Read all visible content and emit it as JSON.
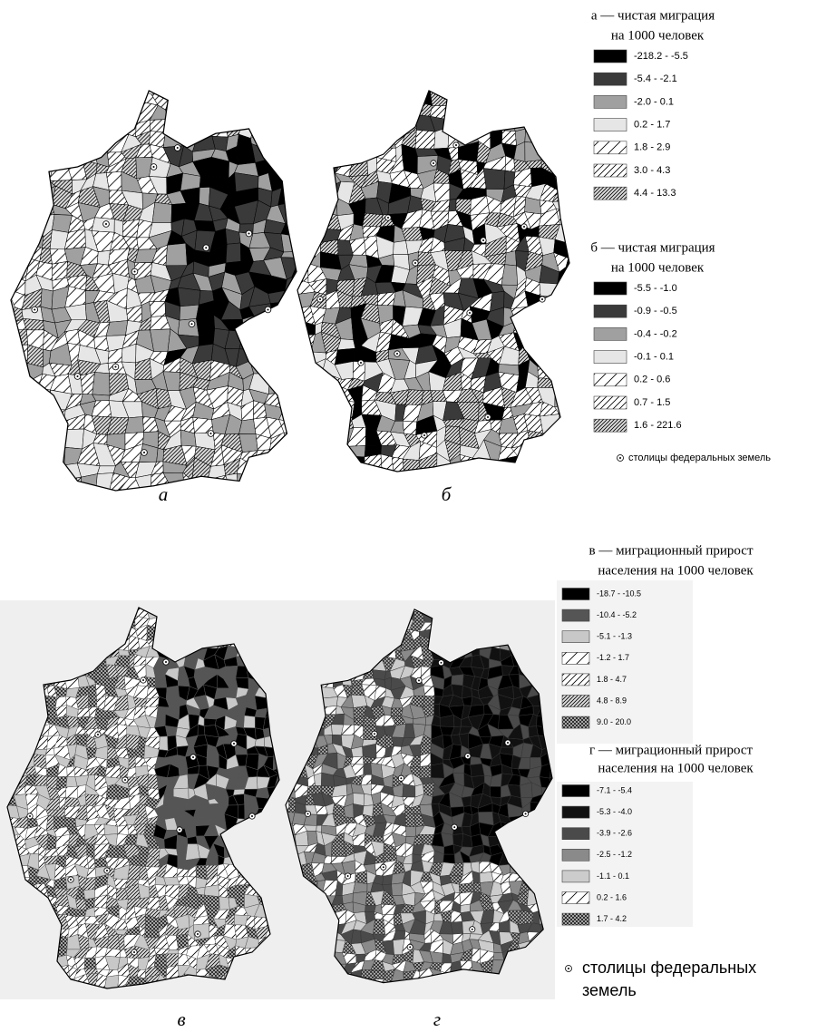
{
  "panels": [
    {
      "label": "а",
      "title": [
        "а — чистая миграция",
        "на 1000 человек"
      ],
      "items": [
        {
          "label": "-218.2 - -5.5",
          "fill": "#000000"
        },
        {
          "label": "-5.4 - -2.1",
          "fill": "#3a3a3a"
        },
        {
          "label": "-2.0 - 0.1",
          "fill": "#a0a0a0"
        },
        {
          "label": "0.2 - 1.7",
          "fill": "#e6e6e6"
        },
        {
          "label": "1.8 - 2.9",
          "fill": "hatch-sparse"
        },
        {
          "label": "3.0 - 4.3",
          "fill": "hatch"
        },
        {
          "label": "4.4 - 13.3",
          "fill": "hatch-dense"
        }
      ]
    },
    {
      "label": "б",
      "title": [
        "б — чистая миграция",
        "на 1000 человек"
      ],
      "items": [
        {
          "label": "-5.5 - -1.0",
          "fill": "#000000"
        },
        {
          "label": "-0.9 - -0.5",
          "fill": "#3a3a3a"
        },
        {
          "label": "-0.4 - -0.2",
          "fill": "#a0a0a0"
        },
        {
          "label": "-0.1 - 0.1",
          "fill": "#e6e6e6"
        },
        {
          "label": "0.2 - 0.6",
          "fill": "hatch-sparse"
        },
        {
          "label": "0.7 - 1.5",
          "fill": "hatch"
        },
        {
          "label": "1.6 - 221.6",
          "fill": "hatch-dense"
        }
      ]
    },
    {
      "label": "в",
      "title": [
        "в — миграционный прирост",
        "населения на 1000 человек"
      ],
      "items": [
        {
          "label": "-18.7 - -10.5",
          "fill": "#000000"
        },
        {
          "label": "-10.4 - -5.2",
          "fill": "#555555"
        },
        {
          "label": "-5.1 - -1.3",
          "fill": "#c8c8c8"
        },
        {
          "label": "-1.2 - 1.7",
          "fill": "hatch-sparse"
        },
        {
          "label": "1.8 - 4.7",
          "fill": "hatch"
        },
        {
          "label": "4.8 - 8.9",
          "fill": "hatch-dense"
        },
        {
          "label": "9.0 - 20.0",
          "fill": "cross"
        }
      ]
    },
    {
      "label": "г",
      "title": [
        "г — миграционный прирост",
        "населения на 1000 человек"
      ],
      "items": [
        {
          "label": "-7.1 - -5.4",
          "fill": "#000000"
        },
        {
          "label": "-5.3 - -4.0",
          "fill": "#111111"
        },
        {
          "label": "-3.9 - -2.6",
          "fill": "#4a4a4a"
        },
        {
          "label": "-2.5 - -1.2",
          "fill": "#8a8a8a"
        },
        {
          "label": "-1.1 - 0.1",
          "fill": "#cccccc"
        },
        {
          "label": "0.2 - 1.6",
          "fill": "hatch-sparse"
        },
        {
          "label": "1.7 - 4.2",
          "fill": "cross"
        }
      ]
    }
  ],
  "capitals_note_top": "столицы федеральных земель",
  "capitals_note_bottom": [
    "столицы федеральных",
    "земель"
  ]
}
